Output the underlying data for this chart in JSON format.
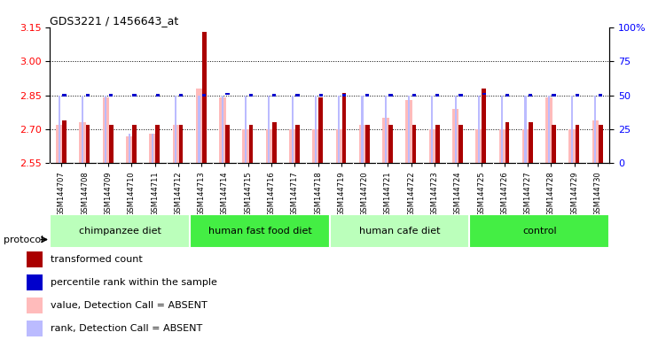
{
  "title": "GDS3221 / 1456643_at",
  "samples": [
    "GSM144707",
    "GSM144708",
    "GSM144709",
    "GSM144710",
    "GSM144711",
    "GSM144712",
    "GSM144713",
    "GSM144714",
    "GSM144715",
    "GSM144716",
    "GSM144717",
    "GSM144718",
    "GSM144719",
    "GSM144720",
    "GSM144721",
    "GSM144722",
    "GSM144723",
    "GSM144724",
    "GSM144725",
    "GSM144726",
    "GSM144727",
    "GSM144728",
    "GSM144729",
    "GSM144730"
  ],
  "groups": [
    {
      "label": "chimpanzee diet",
      "start": 0,
      "end": 6,
      "color": "#bbffbb"
    },
    {
      "label": "human fast food diet",
      "start": 6,
      "end": 12,
      "color": "#44ee44"
    },
    {
      "label": "human cafe diet",
      "start": 12,
      "end": 18,
      "color": "#bbffbb"
    },
    {
      "label": "control",
      "start": 18,
      "end": 24,
      "color": "#44ee44"
    }
  ],
  "transformed_count": [
    2.74,
    2.72,
    2.72,
    2.72,
    2.72,
    2.72,
    3.13,
    2.72,
    2.72,
    2.73,
    2.72,
    2.84,
    2.86,
    2.72,
    2.72,
    2.72,
    2.72,
    2.72,
    2.88,
    2.73,
    2.73,
    2.72,
    2.72,
    2.72
  ],
  "percentile_rank": [
    50,
    50,
    50,
    50,
    50,
    50,
    50,
    51,
    50,
    50,
    50,
    50,
    50,
    50,
    50,
    50,
    50,
    50,
    51,
    50,
    50,
    50,
    50,
    50
  ],
  "absent_value": [
    2.72,
    2.73,
    2.84,
    2.67,
    2.68,
    2.72,
    2.88,
    2.84,
    2.7,
    2.7,
    2.7,
    2.7,
    2.7,
    2.72,
    2.75,
    2.83,
    2.7,
    2.79,
    2.7,
    2.7,
    2.7,
    2.84,
    2.7,
    2.74
  ],
  "absent_rank": [
    50,
    50,
    50,
    22,
    22,
    50,
    50,
    50,
    50,
    50,
    50,
    50,
    50,
    50,
    50,
    50,
    50,
    50,
    50,
    50,
    50,
    50,
    50,
    50
  ],
  "ylim_left": [
    2.55,
    3.15
  ],
  "ylim_right": [
    0,
    100
  ],
  "yticks_left": [
    2.55,
    2.7,
    2.85,
    3.0,
    3.15
  ],
  "yticks_right": [
    0,
    25,
    50,
    75,
    100
  ],
  "ytick_labels_right": [
    "0",
    "25",
    "50",
    "75",
    "100%"
  ],
  "hlines": [
    2.7,
    2.85,
    3.0
  ],
  "bar_color": "#aa0000",
  "absent_val_color": "#ffbbbb",
  "absent_rank_color": "#bbbbff",
  "percentile_color": "#0000cc",
  "legend_items": [
    {
      "color": "#aa0000",
      "label": "transformed count"
    },
    {
      "color": "#0000cc",
      "label": "percentile rank within the sample"
    },
    {
      "color": "#ffbbbb",
      "label": "value, Detection Call = ABSENT"
    },
    {
      "color": "#bbbbff",
      "label": "rank, Detection Call = ABSENT"
    }
  ]
}
